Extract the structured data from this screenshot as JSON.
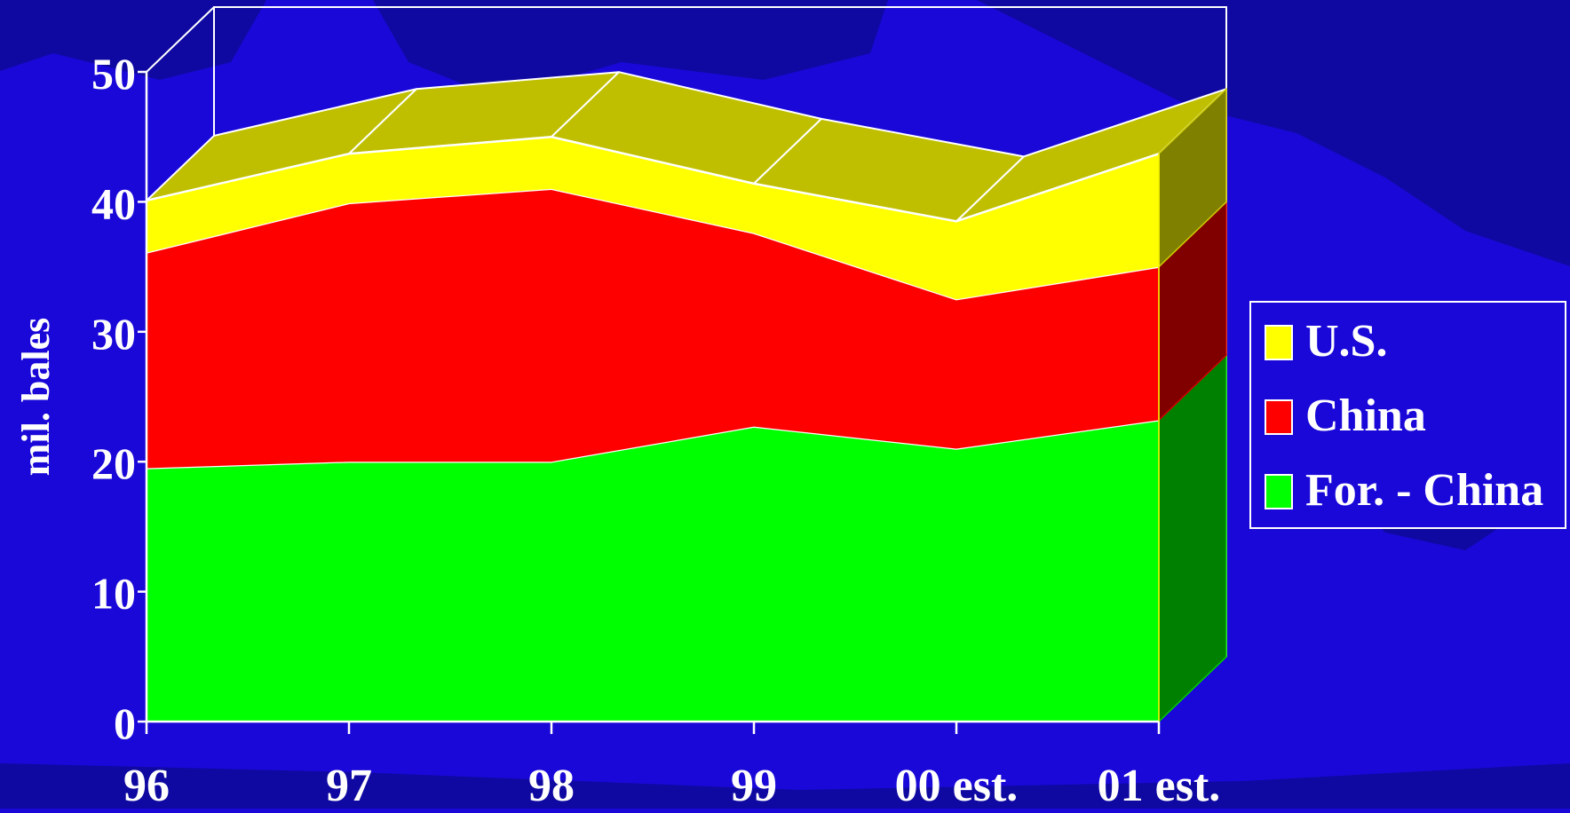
{
  "chart_data": {
    "type": "area",
    "stacked": true,
    "three_d": true,
    "title": "",
    "xlabel": "",
    "ylabel": "mil. bales",
    "ylim": [
      0,
      50
    ],
    "yticks": [
      0,
      10,
      20,
      30,
      40,
      50
    ],
    "categories": [
      "96",
      "97",
      "98",
      "99",
      "00 est.",
      "01 est."
    ],
    "series": [
      {
        "name": "For. - China",
        "color": "#00ff00",
        "values": [
          19.5,
          20.0,
          20.0,
          22.7,
          21.0,
          23.2
        ]
      },
      {
        "name": "China",
        "color": "#ff0000",
        "values": [
          16.6,
          19.9,
          21.0,
          14.9,
          11.5,
          11.8
        ]
      },
      {
        "name": "U.S.",
        "color": "#ffff00",
        "values": [
          4.0,
          3.8,
          4.0,
          3.8,
          6.0,
          8.7
        ]
      }
    ],
    "legend": {
      "position": "right",
      "order": [
        "U.S.",
        "China",
        "For. - China"
      ]
    },
    "grid": false
  },
  "colors": {
    "background": "#1a08d8",
    "text": "#ffffff",
    "outline": "#ffffff"
  }
}
